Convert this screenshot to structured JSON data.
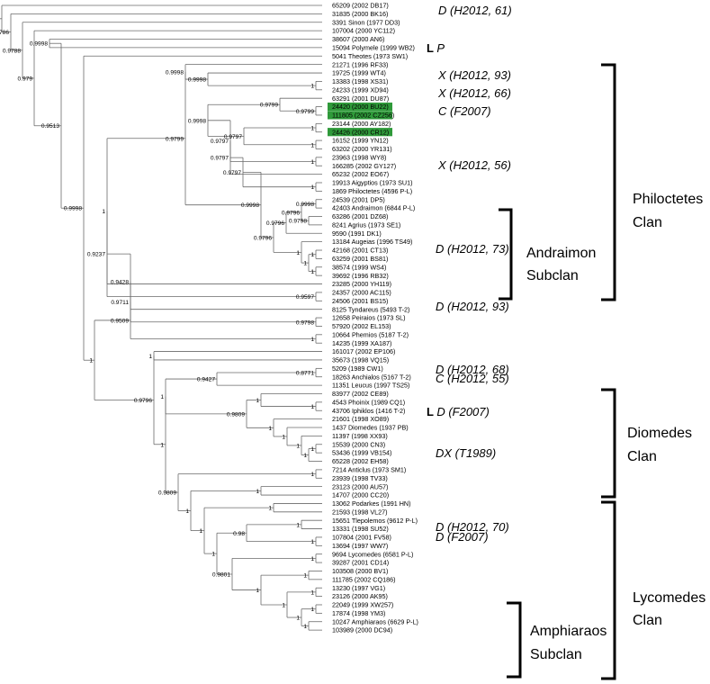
{
  "tree": {
    "leaves": [
      {
        "id": "L01",
        "label": "65209 (2002 DB17)"
      },
      {
        "id": "L02",
        "label": "31835 (2000 BK16)"
      },
      {
        "id": "L03",
        "label": "3391 Sinon (1977 DD3)"
      },
      {
        "id": "L04",
        "label": "107004 (2000 YC112)"
      },
      {
        "id": "L05",
        "label": "38607 (2000 AN6)"
      },
      {
        "id": "L06",
        "label": "15094 Polymele (1999 WB2)"
      },
      {
        "id": "L07",
        "label": "5041 Theotes (1973 SW1)"
      },
      {
        "id": "L08",
        "label": "21271 (1996 RF33)"
      },
      {
        "id": "L09",
        "label": "19725 (1999 WT4)"
      },
      {
        "id": "L10",
        "label": "13383 (1998 XS31)"
      },
      {
        "id": "L11",
        "label": "24233 (1999 XD94)"
      },
      {
        "id": "L12",
        "label": "63291 (2001 DU87)"
      },
      {
        "id": "L13",
        "label": "24420 (2000 BU22)",
        "highlight": true
      },
      {
        "id": "L14",
        "label": "111805 (2002 CZ256)",
        "highlight": true
      },
      {
        "id": "L15",
        "label": "23144 (2000 AY182)"
      },
      {
        "id": "L16",
        "label": "24426 (2000 CR12)",
        "highlight": true
      },
      {
        "id": "L17",
        "label": "16152 (1999 YN12)"
      },
      {
        "id": "L18",
        "label": "63202 (2000 YR131)"
      },
      {
        "id": "L19",
        "label": "23963 (1998 WY8)"
      },
      {
        "id": "L20",
        "label": "166285 (2002 GY127)"
      },
      {
        "id": "L21",
        "label": "65232 (2002 EO67)"
      },
      {
        "id": "L22",
        "label": "19913 Aigyptios (1973 SU1)"
      },
      {
        "id": "L23",
        "label": "1869 Philoctetes (4596 P-L)"
      },
      {
        "id": "L24",
        "label": "24539 (2001 DP5)"
      },
      {
        "id": "L25",
        "label": "42403 Andraimon (6844 P-L)"
      },
      {
        "id": "L26",
        "label": "63286 (2001 DZ68)"
      },
      {
        "id": "L27",
        "label": "8241 Agrius (1973 SE1)"
      },
      {
        "id": "L28",
        "label": "9590 (1991 DK1)"
      },
      {
        "id": "L29",
        "label": "13184 Augeias (1996 TS49)"
      },
      {
        "id": "L30",
        "label": "42168 (2001 CT13)"
      },
      {
        "id": "L31",
        "label": "63259 (2001 BS81)"
      },
      {
        "id": "L32",
        "label": "38574 (1999 WS4)"
      },
      {
        "id": "L33",
        "label": "39692 (1996 RB32)"
      },
      {
        "id": "L34",
        "label": "23285 (2000 YH119)"
      },
      {
        "id": "L35",
        "label": "24357 (2000 AC115)"
      },
      {
        "id": "L36",
        "label": "24506 (2001 BS15)"
      },
      {
        "id": "L37",
        "label": "8125 Tyndareus (5493 T-2)"
      },
      {
        "id": "L38",
        "label": "12658 Peiraios (1973 SL)"
      },
      {
        "id": "L39",
        "label": "57920 (2002 EL153)"
      },
      {
        "id": "L40",
        "label": "10664 Phemios (5187 T-2)"
      },
      {
        "id": "L41",
        "label": "14235 (1999 XA187)"
      },
      {
        "id": "L42",
        "label": "161017 (2002 EP106)"
      },
      {
        "id": "L43",
        "label": "35673 (1998 VQ15)"
      },
      {
        "id": "L44",
        "label": "5209 (1989 CW1)"
      },
      {
        "id": "L45",
        "label": "18263 Anchialos (5167 T-2)"
      },
      {
        "id": "L46",
        "label": "11351 Leucus (1997 TS25)"
      },
      {
        "id": "L47",
        "label": "83977 (2002 CE89)"
      },
      {
        "id": "L48",
        "label": "4543 Phoinix (1989 CQ1)"
      },
      {
        "id": "L49",
        "label": "43706 Iphiklos (1416 T-2)"
      },
      {
        "id": "L50",
        "label": "21601 (1998 XO89)"
      },
      {
        "id": "L51",
        "label": "1437 Diomedes (1937 PB)"
      },
      {
        "id": "L52",
        "label": "11397 (1998 XX93)"
      },
      {
        "id": "L53",
        "label": "15539 (2000 CN3)"
      },
      {
        "id": "L54",
        "label": "53436 (1999 VB154)"
      },
      {
        "id": "L55",
        "label": "65228 (2002 EH58)"
      },
      {
        "id": "L56",
        "label": "7214 Anticlus (1973 SM1)"
      },
      {
        "id": "L57",
        "label": "23939 (1998 TV33)"
      },
      {
        "id": "L58",
        "label": "23123 (2000 AU57)"
      },
      {
        "id": "L59",
        "label": "14707 (2000 CC20)"
      },
      {
        "id": "L60",
        "label": "13062 Podarkes (1991 HN)"
      },
      {
        "id": "L61",
        "label": "21593 (1998 VL27)"
      },
      {
        "id": "L62",
        "label": "15651 Tlepolemos (9612 P-L)"
      },
      {
        "id": "L63",
        "label": "13331 (1998 SU52)"
      },
      {
        "id": "L64",
        "label": "107804 (2001 FV58)"
      },
      {
        "id": "L65",
        "label": "13694 (1997 WW7)"
      },
      {
        "id": "L66",
        "label": "9694 Lycomedes (6581 P-L)"
      },
      {
        "id": "L67",
        "label": "39287 (2001 CD14)"
      },
      {
        "id": "L68",
        "label": "103508 (2000 BV1)"
      },
      {
        "id": "L69",
        "label": "111785 (2002 CQ186)"
      },
      {
        "id": "L70",
        "label": "13230 (1997 VG1)"
      },
      {
        "id": "L71",
        "label": "23126 (2000 AK95)"
      },
      {
        "id": "L72",
        "label": "22049 (1999 XW257)"
      },
      {
        "id": "L73",
        "label": "17874 (1998 YM3)"
      },
      {
        "id": "L74",
        "label": "10247 Amphiaraos (6629 P-L)"
      },
      {
        "id": "L75",
        "label": "103989 (2000 DC94)"
      }
    ],
    "supports": [
      {
        "id": "s_root",
        "value": "0.9782"
      },
      {
        "id": "s_b",
        "value": "0.9786"
      },
      {
        "id": "s_c",
        "value": "0.9788"
      },
      {
        "id": "s_d",
        "value": "0.979"
      },
      {
        "id": "s_e",
        "value": "0.9998"
      },
      {
        "id": "s_f",
        "value": "0.9998"
      },
      {
        "id": "s_g",
        "value": "0.9513"
      },
      {
        "id": "s_h",
        "value": "0.9998"
      },
      {
        "id": "s_i",
        "value": "0.9998"
      },
      {
        "id": "s_j",
        "value": "0.9998"
      },
      {
        "id": "s_k",
        "value": "0.9799"
      },
      {
        "id": "s_l",
        "value": "0.9799"
      },
      {
        "id": "s_m",
        "value": "0.9998"
      },
      {
        "id": "s_n",
        "value": "0.9797"
      },
      {
        "id": "s_o",
        "value": "0.9797"
      },
      {
        "id": "s_p",
        "value": "0.9797"
      },
      {
        "id": "s_q",
        "value": "0.9797"
      },
      {
        "id": "s_r",
        "value": "0.9998"
      },
      {
        "id": "s_s",
        "value": "0.9799"
      },
      {
        "id": "s_t",
        "value": "0.9998"
      },
      {
        "id": "s_u",
        "value": "0.9796"
      },
      {
        "id": "s_v",
        "value": "0.9796"
      },
      {
        "id": "s_w",
        "value": "0.9798"
      },
      {
        "id": "s_x",
        "value": "0.9796"
      },
      {
        "id": "s_y",
        "value": "0.9597"
      },
      {
        "id": "s_z",
        "value": "0.9237"
      },
      {
        "id": "s_aa",
        "value": "0.9428"
      },
      {
        "id": "s_ab",
        "value": "0.9798"
      },
      {
        "id": "s_ac",
        "value": "0.9711"
      },
      {
        "id": "s_ad",
        "value": "0.9509"
      },
      {
        "id": "s_ae",
        "value": "0.9796"
      },
      {
        "id": "s_af",
        "value": "0.8771"
      },
      {
        "id": "s_ag",
        "value": "0.9427"
      },
      {
        "id": "s_ah",
        "value": "0.9809"
      },
      {
        "id": "s_ai",
        "value": "0.9809"
      },
      {
        "id": "s_aj",
        "value": "0.98"
      },
      {
        "id": "s_ak",
        "value": "0.9801"
      },
      {
        "id": "s_one",
        "value": "1"
      }
    ]
  },
  "taxonomy": [
    {
      "id": "t01",
      "text": "D (H2012, 61)"
    },
    {
      "id": "t02",
      "prefix": "L",
      "text": "P"
    },
    {
      "id": "t03",
      "text": "X (H2012, 93)"
    },
    {
      "id": "t04",
      "text": "X (H2012, 66)"
    },
    {
      "id": "t05",
      "text": "C (F2007)"
    },
    {
      "id": "t06",
      "text": "X (H2012, 56)"
    },
    {
      "id": "t07",
      "text": "D (H2012, 73)"
    },
    {
      "id": "t08",
      "text": "D (H2012, 93)"
    },
    {
      "id": "t09",
      "text": "D (H2012, 68)"
    },
    {
      "id": "t10",
      "text": "C (H2012, 55)"
    },
    {
      "id": "t11",
      "prefix": "L",
      "text": "D (F2007)"
    },
    {
      "id": "t12",
      "text": "DX (T1989)"
    },
    {
      "id": "t13",
      "text": "D (H2012, 70)"
    },
    {
      "id": "t14",
      "text": "D (F2007)"
    }
  ],
  "groups": [
    {
      "id": "philoctetes",
      "line1": "Philoctetes",
      "line2": "Clan"
    },
    {
      "id": "andraimon",
      "line1": "Andraimon",
      "line2": "Subclan"
    },
    {
      "id": "diomedes",
      "line1": "Diomedes",
      "line2": "Clan"
    },
    {
      "id": "lycomedes",
      "line1": "Lycomedes",
      "line2": "Clan"
    },
    {
      "id": "amphiaraos",
      "line1": "Amphiaraos",
      "line2": "Subclan"
    }
  ]
}
